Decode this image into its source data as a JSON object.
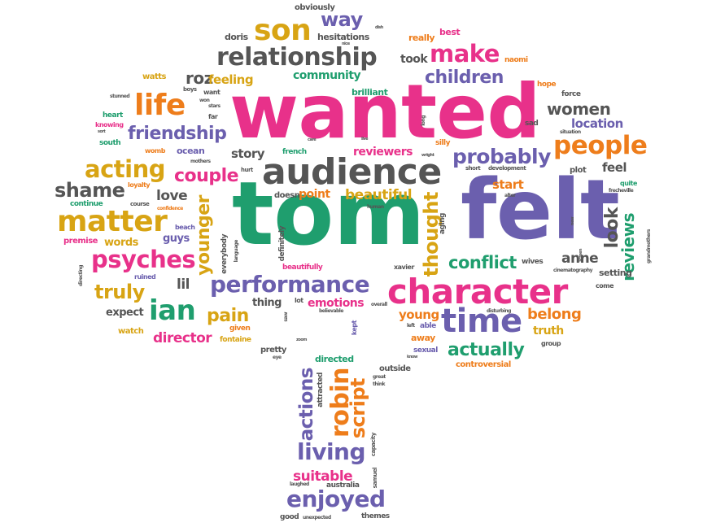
{
  "palette": {
    "pink": "#e8318a",
    "green": "#1f9e6e",
    "purple": "#6b5fae",
    "orange": "#ee7d1b",
    "gold": "#d8a414",
    "gray": "#555555"
  },
  "words": {
    "wanted": "wanted",
    "tom": "tom",
    "felt": "felt",
    "audience": "audience",
    "character": "character",
    "time": "time",
    "matter": "matter",
    "ian": "ian",
    "psyches": "psyches",
    "performance": "performance",
    "son": "son",
    "relationship": "relationship",
    "life": "life",
    "people": "people",
    "acting": "acting",
    "make": "make",
    "enjoyed": "enjoyed",
    "living": "living",
    "robin": "robin",
    "actions": "actions",
    "script": "script",
    "way": "way",
    "children": "children",
    "probably": "probably",
    "friendship": "friendship",
    "shame": "shame",
    "couple": "couple",
    "thought": "thought",
    "younger": "younger",
    "look": "look",
    "conflict": "conflict",
    "actually": "actually",
    "truly": "truly",
    "pain": "pain",
    "women": "women",
    "reviews": "reviews",
    "roz": "roz",
    "feeling": "feeling",
    "community": "community",
    "beautiful": "beautiful",
    "love": "love",
    "lil": "lil",
    "director": "director",
    "suitable": "suitable",
    "anne": "anne",
    "belong": "belong",
    "emotions": "emotions",
    "location": "location",
    "story": "story",
    "feel": "feel",
    "young": "young",
    "start": "start",
    "reviewers": "reviewers",
    "point": "point",
    "took": "took",
    "hesitations": "hesitations",
    "obviously": "obviously",
    "doris": "doris",
    "really": "really",
    "best": "best",
    "naomi": "naomi",
    "watts": "watts",
    "brilliant": "brilliant",
    "heart": "heart",
    "knowing": "knowing",
    "south": "south",
    "womb": "womb",
    "ocean": "ocean",
    "french": "french",
    "silly": "silly",
    "sad": "sad",
    "hope": "hope",
    "force": "force",
    "situation": "situation",
    "short": "short",
    "development": "development",
    "plot": "plot",
    "quite": "quite",
    "frecheville": "frecheville",
    "continue": "continue",
    "loyalty": "loyalty",
    "course": "course",
    "confidence": "confidence",
    "premise": "premise",
    "words": "words",
    "guys": "guys",
    "beach": "beach",
    "doesn": "doesn",
    "definitely": "definitely",
    "everybody": "everybody",
    "language": "language",
    "beautifully": "beautifully",
    "human": "human",
    "aging": "aging",
    "wives": "wives",
    "xavier": "xavier",
    "cinematography": "cinematography",
    "setting": "setting",
    "come": "come",
    "directing": "directing",
    "ruined": "ruined",
    "thing": "thing",
    "expect": "expect",
    "watch": "watch",
    "given": "given",
    "fontaine": "fontaine",
    "pretty": "pretty",
    "zoom": "zoom",
    "eye": "eye",
    "lot": "lot",
    "saw": "saw",
    "believable": "believable",
    "overall": "overall",
    "kept": "kept",
    "able": "able",
    "left": "left",
    "away": "away",
    "sexual": "sexual",
    "know": "know",
    "truth": "truth",
    "group": "group",
    "controversial": "controversial",
    "disturbing": "disturbing",
    "directed": "directed",
    "outside": "outside",
    "great": "great",
    "think": "think",
    "attracted": "attracted",
    "capacity": "capacity",
    "samuel": "samuel",
    "australia": "australia",
    "laughed": "laughed",
    "good": "good",
    "unexpected": "unexpected",
    "themes": "themes",
    "stunned": "stunned",
    "boys": "boys",
    "want": "want",
    "won": "won",
    "stars": "stars",
    "far": "far",
    "sort": "sort",
    "mothers": "mothers",
    "hurt": "hurt",
    "alter": "alter",
    "long": "long",
    "new": "new",
    "screen": "screen",
    "grandmothers": "grandmothers",
    "nice": "nice",
    "wright": "wright",
    "dish": "dish",
    "live": "live",
    "care": "care"
  }
}
